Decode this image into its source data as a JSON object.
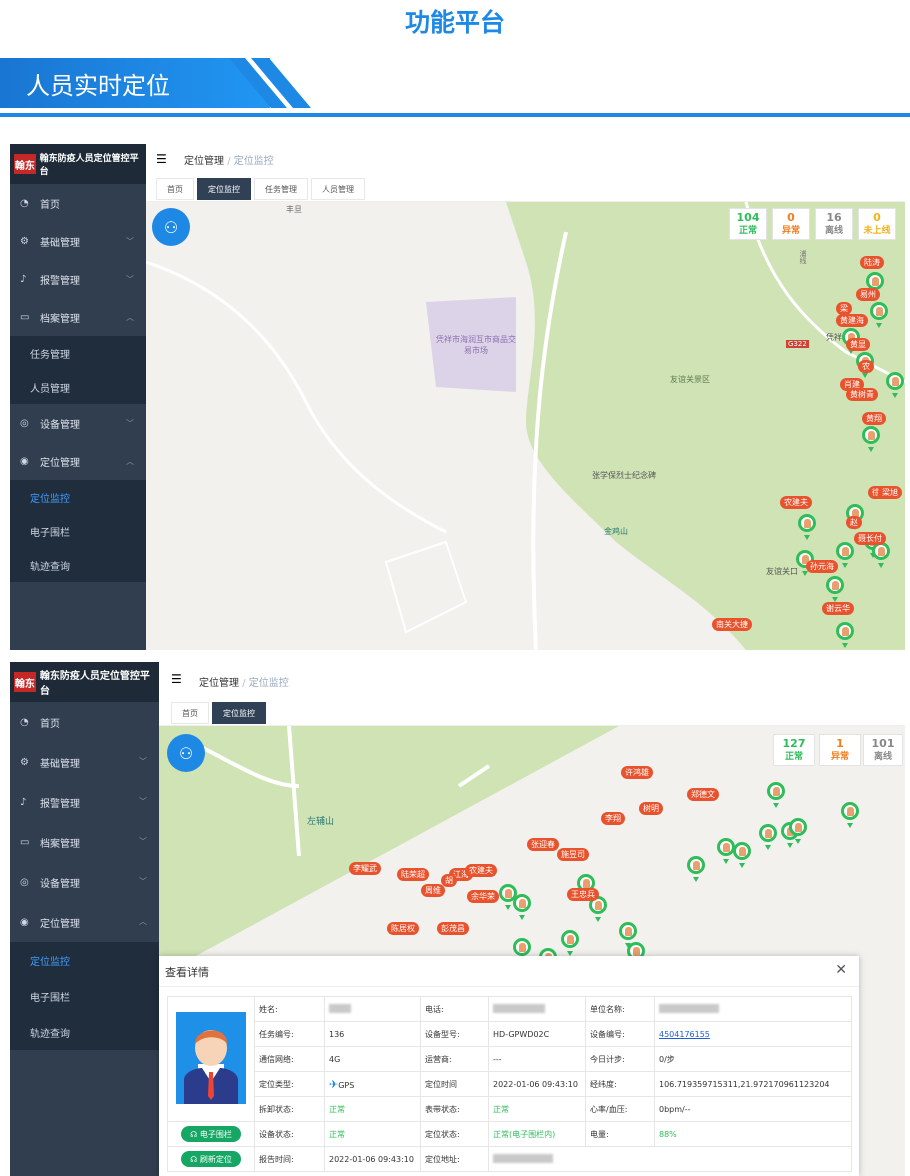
{
  "header": {
    "title": "功能平台",
    "section": "人员实时定位"
  },
  "app": {
    "title": "翰东防疫人员定位管控平台",
    "logo_mark": "翰东"
  },
  "menu": {
    "home": "首页",
    "base": "基础管理",
    "alarm": "报警管理",
    "archive": "档案管理",
    "task": "任务管理",
    "person": "人员管理",
    "device": "设备管理",
    "location": "定位管理",
    "monitor": "定位监控",
    "fence": "电子围栏",
    "track": "轨迹查询"
  },
  "breadcrumb": {
    "parent": "定位管理",
    "current": "定位监控"
  },
  "tabs1": [
    "首页",
    "定位监控",
    "任务管理",
    "人员管理"
  ],
  "tabs2": [
    "首页",
    "定位监控"
  ],
  "map1": {
    "places": [
      "丰旦",
      "凭祥市海润互市商品交易市场",
      "友谊关景区",
      "张学保烈士纪念碑",
      "金鸡山",
      "凭祥检",
      "友谊关口",
      "G322",
      "浦线"
    ],
    "stats": [
      {
        "n": "104",
        "l": "正常",
        "color": "#2ebd59"
      },
      {
        "n": "0",
        "l": "异常",
        "color": "#f07e1e"
      },
      {
        "n": "16",
        "l": "离线",
        "color": "#888888"
      },
      {
        "n": "0",
        "l": "未上线",
        "color": "#f2b21a"
      }
    ],
    "tags": [
      "陆涛",
      "易州",
      "梁",
      "黄建海",
      "黄显",
      "农",
      "肖建",
      "黄树青",
      "黄翔",
      "徐鑫强",
      "梁旭",
      "农建夫",
      "赵",
      "聂长付",
      "孙元海",
      "谢云华",
      "南关大捷"
    ]
  },
  "map2": {
    "places": [
      "左辅山"
    ],
    "stats": [
      {
        "n": "127",
        "l": "正常",
        "color": "#2ebd59"
      },
      {
        "n": "1",
        "l": "异常",
        "color": "#f07e1e"
      },
      {
        "n": "101",
        "l": "离线",
        "color": "#888888"
      }
    ],
    "tags": [
      "许鸿雄",
      "郑德文",
      "李翔",
      "树明",
      "张迎春",
      "施昱司",
      "李耀武",
      "陆荣超",
      "江海",
      "农建夫",
      "胡",
      "周维",
      "余华荣",
      "陈居权",
      "彭茂昌",
      "王忠兵"
    ]
  },
  "detail": {
    "title": "查看详情",
    "rows": [
      [
        {
          "l": "姓名:",
          "v": ""
        },
        {
          "l": "电话:",
          "v": ""
        },
        {
          "l": "单位名称:",
          "v": ""
        }
      ],
      [
        {
          "l": "任务编号:",
          "v": "136"
        },
        {
          "l": "设备型号:",
          "v": "HD-GPWD02C"
        },
        {
          "l": "设备编号:",
          "v": "4504176155"
        }
      ],
      [
        {
          "l": "通信网络:",
          "v": "4G"
        },
        {
          "l": "运营商:",
          "v": "---"
        },
        {
          "l": "今日计步:",
          "v": "0/步"
        }
      ],
      [
        {
          "l": "定位类型:",
          "v": "GPS"
        },
        {
          "l": "定位时间",
          "v": "2022-01-06 09:43:10"
        },
        {
          "l": "经纬度:",
          "v": "106.719359715311,21.972170961123204"
        }
      ],
      [
        {
          "l": "拆卸状态:",
          "v": "正常"
        },
        {
          "l": "表带状态:",
          "v": "正常"
        },
        {
          "l": "心率/血压:",
          "v": "0bpm/--"
        }
      ],
      [
        {
          "l": "设备状态:",
          "v": "正常"
        },
        {
          "l": "定位状态:",
          "v": "正常(电子围栏内)"
        },
        {
          "l": "电量:",
          "v": "88%"
        }
      ],
      [
        {
          "l": "报告时间:",
          "v": "2022-01-06 09:43:10"
        },
        {
          "l": "定位地址:",
          "v": ""
        }
      ]
    ],
    "btn_fence": "电子围栏",
    "btn_refresh": "刷新定位"
  }
}
